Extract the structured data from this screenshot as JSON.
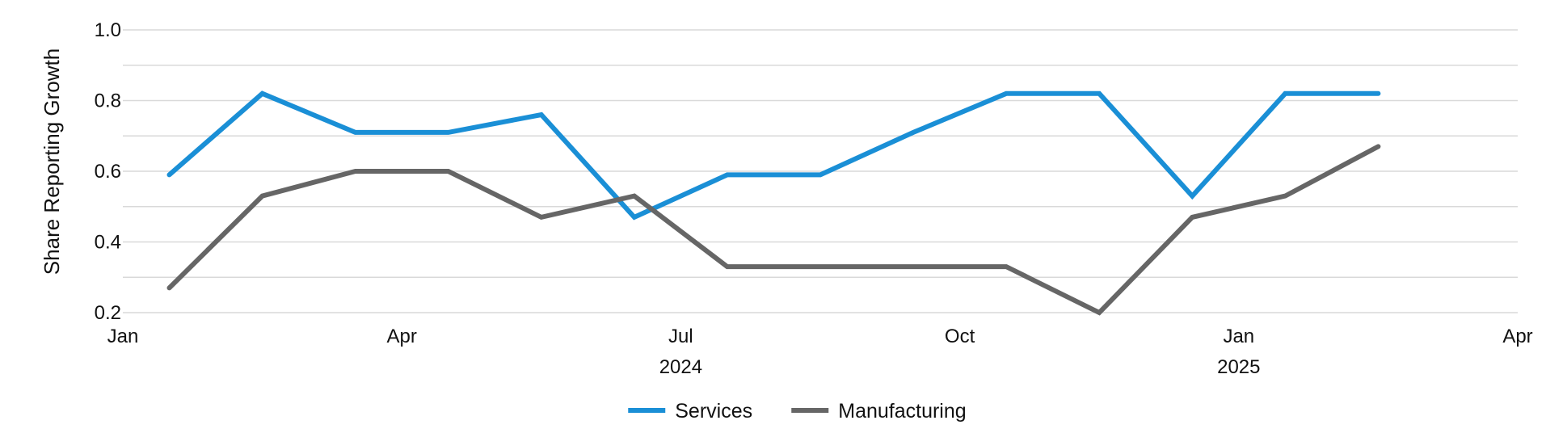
{
  "chart_data": {
    "type": "line",
    "title": "",
    "xlabel": "",
    "ylabel": "Share Reporting Growth",
    "ylim": [
      0.2,
      1.0
    ],
    "y_ticks": [
      0.2,
      0.4,
      0.6,
      0.8,
      1.0
    ],
    "y_tick_labels": [
      "0.2",
      "0.4",
      "0.6",
      "0.8",
      "1.0"
    ],
    "y_minor_gridlines": [
      0.3,
      0.5,
      0.7,
      0.9
    ],
    "xlim_months": [
      0,
      15
    ],
    "x_ticks": [
      {
        "month": 0,
        "label": "Jan",
        "year_label": ""
      },
      {
        "month": 3,
        "label": "Apr",
        "year_label": ""
      },
      {
        "month": 6,
        "label": "Jul",
        "year_label": "2024"
      },
      {
        "month": 9,
        "label": "Oct",
        "year_label": ""
      },
      {
        "month": 12,
        "label": "Jan",
        "year_label": "2025"
      },
      {
        "month": 15,
        "label": "Apr",
        "year_label": ""
      }
    ],
    "x": [
      0.5,
      1.5,
      2.5,
      3.5,
      4.5,
      5.5,
      6.5,
      7.5,
      8.5,
      9.5,
      10.5,
      11.5,
      12.5,
      13.5
    ],
    "series": [
      {
        "name": "Services",
        "color": "#1a8fd6",
        "values": [
          0.59,
          0.82,
          0.71,
          0.71,
          0.76,
          0.47,
          0.59,
          0.59,
          0.71,
          0.82,
          0.82,
          0.53,
          0.82,
          0.82
        ]
      },
      {
        "name": "Manufacturing",
        "color": "#666666",
        "values": [
          0.27,
          0.53,
          0.6,
          0.6,
          0.47,
          0.53,
          0.33,
          0.33,
          0.33,
          0.33,
          0.2,
          0.47,
          0.53,
          0.67
        ]
      }
    ],
    "legend": {
      "placement": "bottom-center"
    },
    "grid": true
  }
}
